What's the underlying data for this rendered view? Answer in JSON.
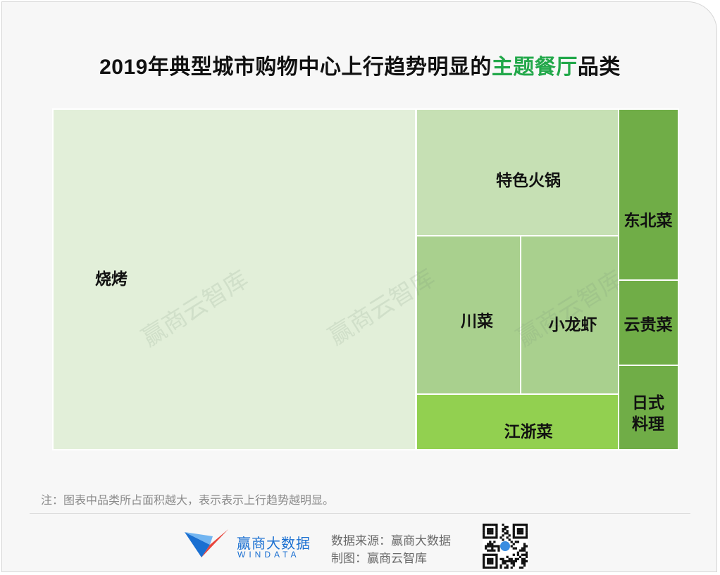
{
  "title": {
    "before": "2019年典型城市购物中心上行趋势明显的",
    "highlight": "主题餐厅",
    "after": "品类"
  },
  "colors": {
    "highlight": "#22a84a",
    "brand_blue": "#1a6fd1",
    "brand_red": "#e8453c"
  },
  "chart_data": {
    "type": "treemap",
    "categories": [
      "烧烤",
      "特色火锅",
      "川菜",
      "小龙虾",
      "江浙菜",
      "东北菜",
      "云贵菜",
      "日式料理"
    ],
    "colors": [
      "#e2efd9",
      "#c6e0b4",
      "#a9d08e",
      "#a9d08e",
      "#92d050",
      "#70ad47",
      "#70ad47",
      "#70ad47"
    ],
    "legend": "none",
    "grid": false
  },
  "watermark": "赢商云智库",
  "note": "注：图表中品类所占面积越大，表示表示上行趋势越明显。",
  "footer": {
    "brand_cn": "赢商大数据",
    "brand_en": "WINDATA",
    "source": "数据来源：赢商大数据",
    "made_by": "制图：赢商云智库"
  }
}
